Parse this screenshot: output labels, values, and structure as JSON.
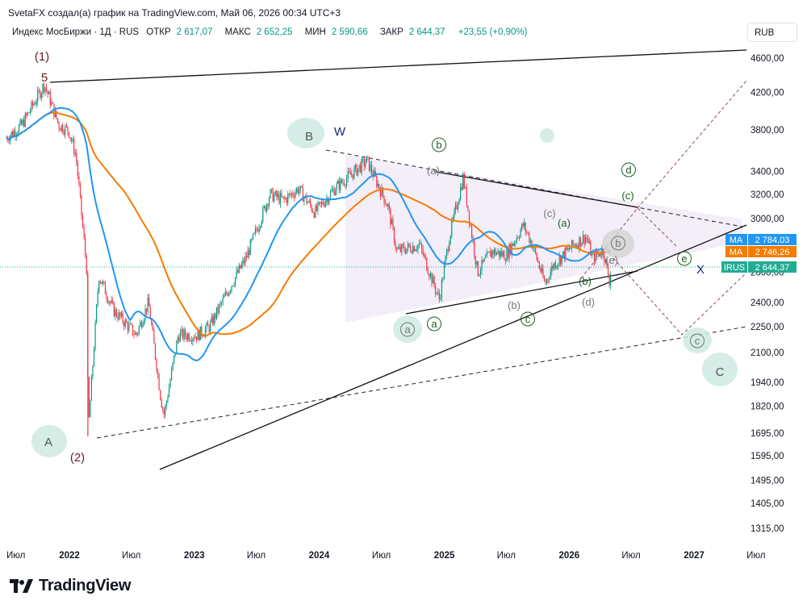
{
  "header": {
    "attribution": "SvetaFX создал(а) график на TradingView.com, Май 06, 2026 00:34 UTC+3"
  },
  "legend": {
    "symbol": "Индекс МосБиржи · 1Д · RUS",
    "open_label": "ОТКР",
    "open_value": "2 617,07",
    "high_label": "МАКС",
    "high_value": "2 652,25",
    "low_label": "МИН",
    "low_value": "2 590,66",
    "close_label": "ЗАКР",
    "close_value": "2 644,37",
    "change": "+23,55 (+0,90%)"
  },
  "currency": "RUB",
  "logo": {
    "text": "TradingView"
  },
  "colors": {
    "up": "#089981",
    "down": "#f23645",
    "ma_fast": "#2196f3",
    "ma_slow": "#f57c00",
    "price_line": "#22ab94",
    "triangle_fill": "#f3eef8",
    "wave_dark": "#6d1a26",
    "wave_green": "#1b5e20",
    "wave_grey": "#757575",
    "wave_navy": "#1a237e",
    "circle_fill": "#cfe9e3"
  },
  "chart_data": {
    "type": "candlestick",
    "symbol": "IMOEX",
    "timeframe": "1D",
    "y_scale": "log",
    "ylim": [
      1250,
      4750
    ],
    "y_ticks": [
      "4600,00",
      "4200,00",
      "3800,00",
      "3400,00",
      "3200,00",
      "3000,00",
      "2600,00",
      "2400,00",
      "2250,00",
      "2100,00",
      "1940,00",
      "1820,00",
      "1695,00",
      "1595,00",
      "1495,00",
      "1405,00",
      "1315,00"
    ],
    "x_ticks": [
      "Июл",
      "2022",
      "Июл",
      "2023",
      "Июл",
      "2024",
      "Июл",
      "2025",
      "Июл",
      "2026",
      "Июл",
      "2027",
      "Июл"
    ],
    "x_dates": [
      "2021-07-01",
      "2022-01-01",
      "2022-07-01",
      "2023-01-01",
      "2023-07-01",
      "2024-01-01",
      "2024-07-01",
      "2025-01-01",
      "2025-07-01",
      "2026-01-01",
      "2026-07-01",
      "2027-01-01",
      "2027-07-01"
    ],
    "price_path": [
      [
        "2021-07-01",
        3720
      ],
      [
        "2021-08-15",
        3850
      ],
      [
        "2021-10-20",
        4290
      ],
      [
        "2021-12-01",
        3850
      ],
      [
        "2021-12-30",
        3790
      ],
      [
        "2022-01-20",
        3550
      ],
      [
        "2022-02-23",
        2560
      ],
      [
        "2022-02-24",
        1680
      ],
      [
        "2022-03-28",
        2580
      ],
      [
        "2022-05-10",
        2350
      ],
      [
        "2022-06-01",
        2300
      ],
      [
        "2022-07-15",
        2200
      ],
      [
        "2022-08-20",
        2400
      ],
      [
        "2022-09-26",
        1850
      ],
      [
        "2022-10-05",
        1780
      ],
      [
        "2022-11-15",
        2200
      ],
      [
        "2023-01-10",
        2200
      ],
      [
        "2023-02-15",
        2250
      ],
      [
        "2023-04-15",
        2500
      ],
      [
        "2023-06-01",
        2700
      ],
      [
        "2023-08-10",
        3200
      ],
      [
        "2023-09-20",
        3150
      ],
      [
        "2023-11-01",
        3250
      ],
      [
        "2023-12-20",
        3050
      ],
      [
        "2024-02-15",
        3250
      ],
      [
        "2024-05-20",
        3500
      ],
      [
        "2024-07-20",
        3100
      ],
      [
        "2024-08-15",
        2750
      ],
      [
        "2024-10-20",
        2800
      ],
      [
        "2024-12-17",
        2420
      ],
      [
        "2025-01-15",
        2850
      ],
      [
        "2025-02-25",
        3350
      ],
      [
        "2025-04-08",
        2600
      ],
      [
        "2025-05-20",
        2750
      ],
      [
        "2025-07-01",
        2720
      ],
      [
        "2025-08-20",
        2950
      ],
      [
        "2025-09-15",
        2800
      ],
      [
        "2025-10-22",
        2520
      ],
      [
        "2025-11-15",
        2650
      ],
      [
        "2026-01-15",
        2800
      ],
      [
        "2026-02-20",
        2860
      ],
      [
        "2026-03-10",
        2700
      ],
      [
        "2026-04-10",
        2760
      ],
      [
        "2026-04-28",
        2540
      ],
      [
        "2026-05-05",
        2644.37
      ]
    ],
    "indicators": {
      "ma_fast": {
        "label": "MA",
        "value": "2 784,03"
      },
      "ma_slow": {
        "label": "MA",
        "value": "2 746,26"
      },
      "last_price": {
        "label": "IRUS",
        "value": "2 644,37"
      }
    },
    "wave_labels": {
      "cycle": [
        "(1)",
        "5",
        "(2)"
      ],
      "corrective": [
        "A",
        "B",
        "C",
        "W",
        "X"
      ],
      "minor": [
        "a",
        "b",
        "c",
        "d",
        "e",
        "(a)",
        "(b)",
        "(c)",
        "(d)",
        "(e)"
      ]
    },
    "grid": false,
    "legend_position": "top-left"
  }
}
